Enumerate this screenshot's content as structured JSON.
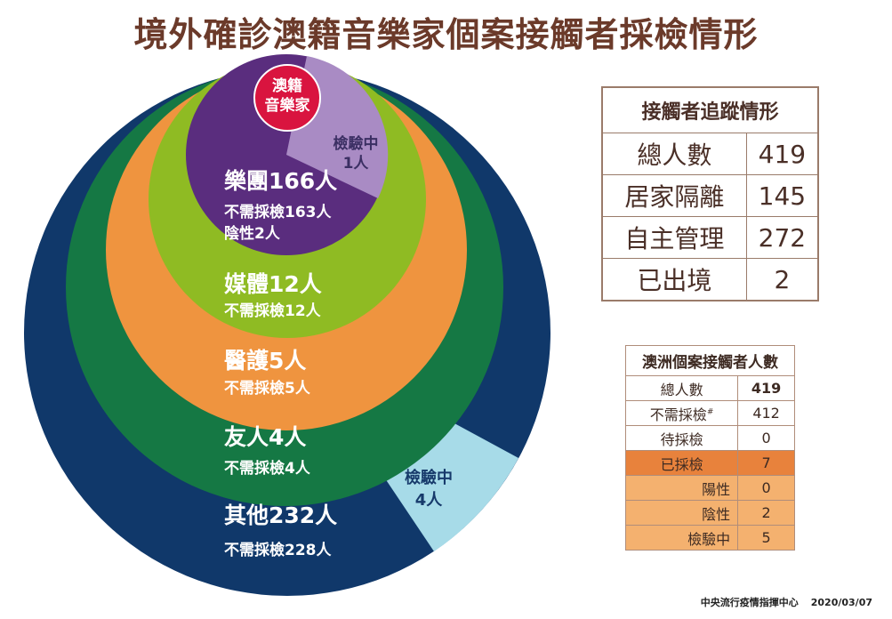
{
  "title": "境外確診澳籍音樂家個案接觸者採檢情形",
  "chart_data": {
    "type": "nested-circle",
    "center": {
      "line1": "澳籍",
      "line2": "音樂家"
    },
    "rings": [
      {
        "name": "其他",
        "total": 232,
        "no_test": 228,
        "testing": 4,
        "label": "其他232人",
        "sub": "不需採檢228人",
        "testing_label": [
          "檢驗中",
          "4人"
        ],
        "color": "#10386a",
        "testing_color": "#a7dbe8"
      },
      {
        "name": "友人",
        "total": 4,
        "no_test": 4,
        "label": "友人4人",
        "sub": "不需採檢4人",
        "color": "#157844"
      },
      {
        "name": "醫護",
        "total": 5,
        "no_test": 5,
        "label": "醫護5人",
        "sub": "不需採檢5人",
        "color": "#ef943f"
      },
      {
        "name": "媒體",
        "total": 12,
        "no_test": 12,
        "label": "媒體12人",
        "sub": "不需採檢12人",
        "color": "#8fbb23"
      },
      {
        "name": "樂團",
        "total": 166,
        "no_test": 163,
        "negative": 2,
        "testing": 1,
        "label": "樂團166人",
        "sub": "不需採檢163人",
        "sub2": "陰性2人",
        "testing_label": [
          "檢驗中",
          "1人"
        ],
        "color": "#5a2d7e",
        "testing_color": "#a98bc4"
      }
    ]
  },
  "table1": {
    "header": "接觸者追蹤情形",
    "rows": [
      {
        "label": "總人數",
        "value": "419"
      },
      {
        "label": "居家隔離",
        "value": "145"
      },
      {
        "label": "自主管理",
        "value": "272"
      },
      {
        "label": "已出境",
        "value": "2"
      }
    ]
  },
  "table2": {
    "header": "澳洲個案接觸者人數",
    "rows": [
      {
        "label": "總人數",
        "value": "419"
      },
      {
        "label": "不需採檢",
        "sup": "#",
        "value": "412"
      },
      {
        "label": "待採檢",
        "value": "0"
      },
      {
        "label": "已採檢",
        "value": "7"
      },
      {
        "label": "陽性",
        "value": "0"
      },
      {
        "label": "陰性",
        "value": "2"
      },
      {
        "label": "檢驗中",
        "value": "5"
      }
    ]
  },
  "footer": {
    "org": "中央流行疫情指揮中心",
    "date": "2020/03/07"
  }
}
